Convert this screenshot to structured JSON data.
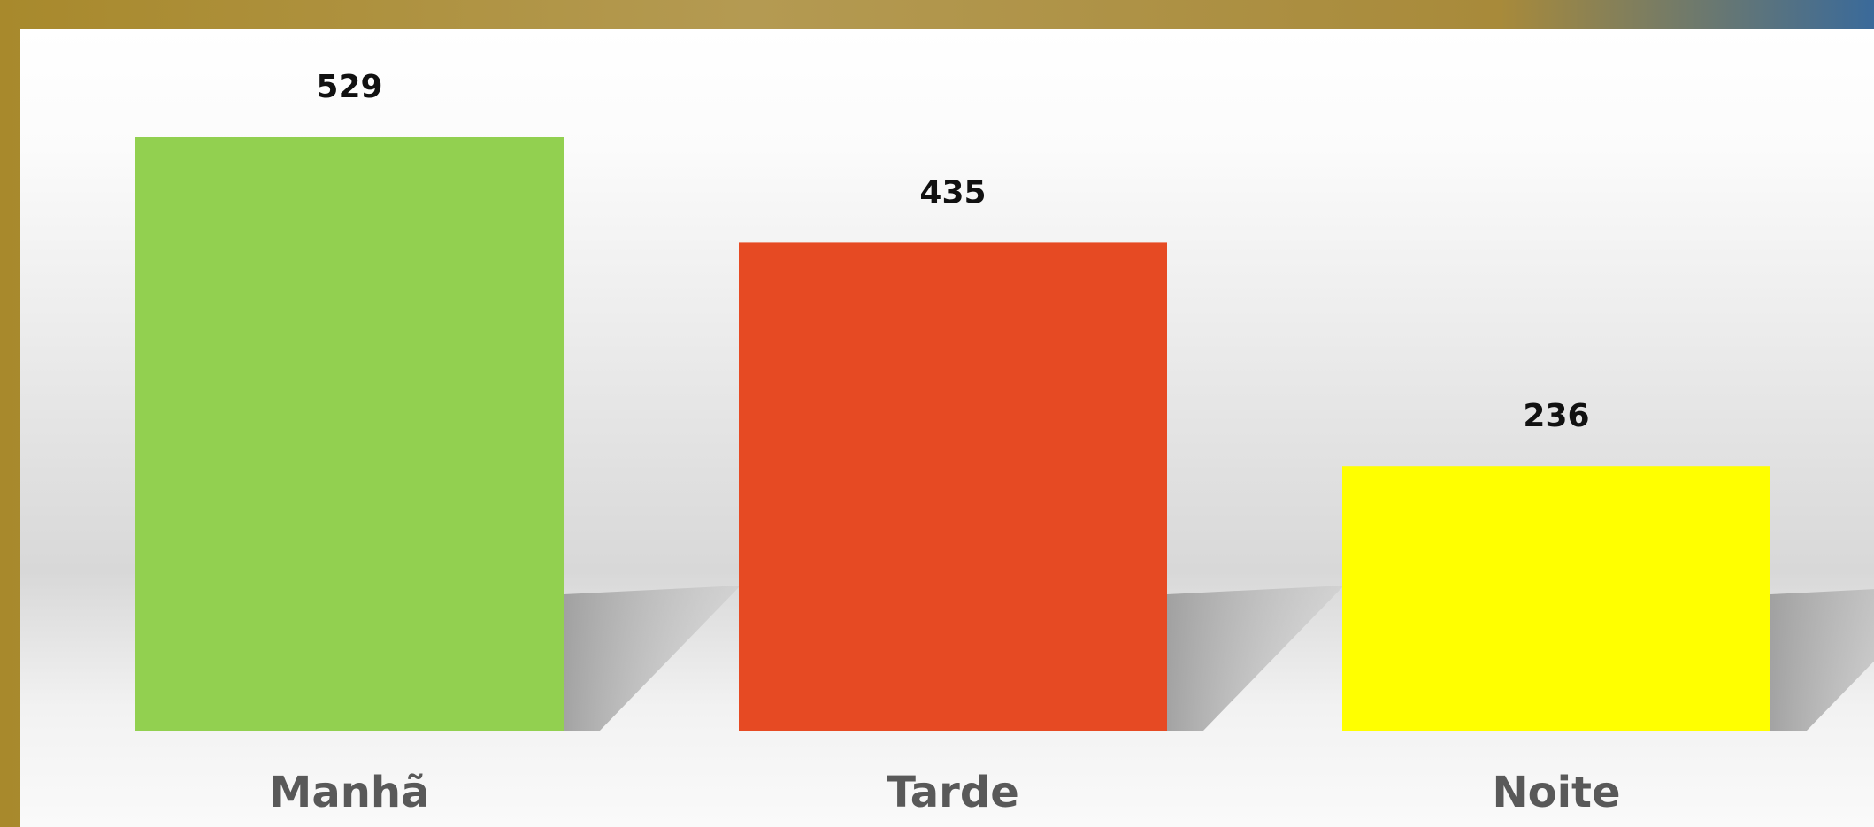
{
  "chart_data": {
    "type": "bar",
    "categories": [
      "Manhã",
      "Tarde",
      "Noite"
    ],
    "values": [
      529,
      435,
      236
    ],
    "colors": [
      "#92d050",
      "#e64a23",
      "#ffff00"
    ]
  }
}
